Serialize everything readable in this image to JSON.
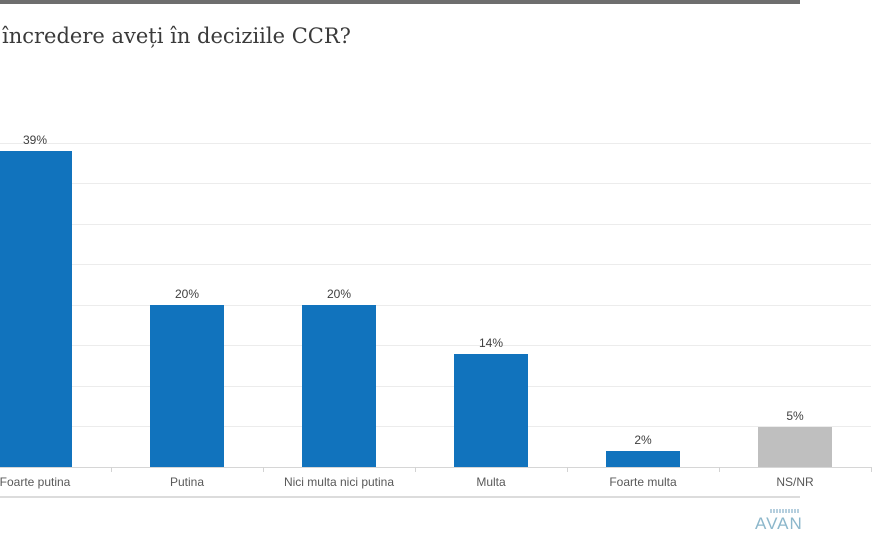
{
  "chart_data": {
    "type": "bar",
    "title": "încredere aveți în deciziile CCR?",
    "categories": [
      "Foarte putina",
      "Putina",
      "Nici multa nici putina",
      "Multa",
      "Foarte multa",
      "NS/NR"
    ],
    "values": [
      39,
      20,
      20,
      14,
      2,
      5
    ],
    "value_labels": [
      "39%",
      "20%",
      "20%",
      "14%",
      "2%",
      "5%"
    ],
    "bar_colors": [
      "#1173bd",
      "#1173bd",
      "#1173bd",
      "#1173bd",
      "#1173bd",
      "#bfbfbf"
    ],
    "xlabel": "",
    "ylabel": "",
    "ylim": [
      0,
      40
    ],
    "grid_step": 5,
    "grid": "on",
    "legend": "none",
    "value_label_position": "above-bar"
  },
  "colors": {
    "accent_blue": "#1173bd",
    "ns_nr_gray": "#bfbfbf",
    "logo_blue": "#8cb7cb"
  },
  "footer": {
    "logo_text": "AVAN"
  }
}
